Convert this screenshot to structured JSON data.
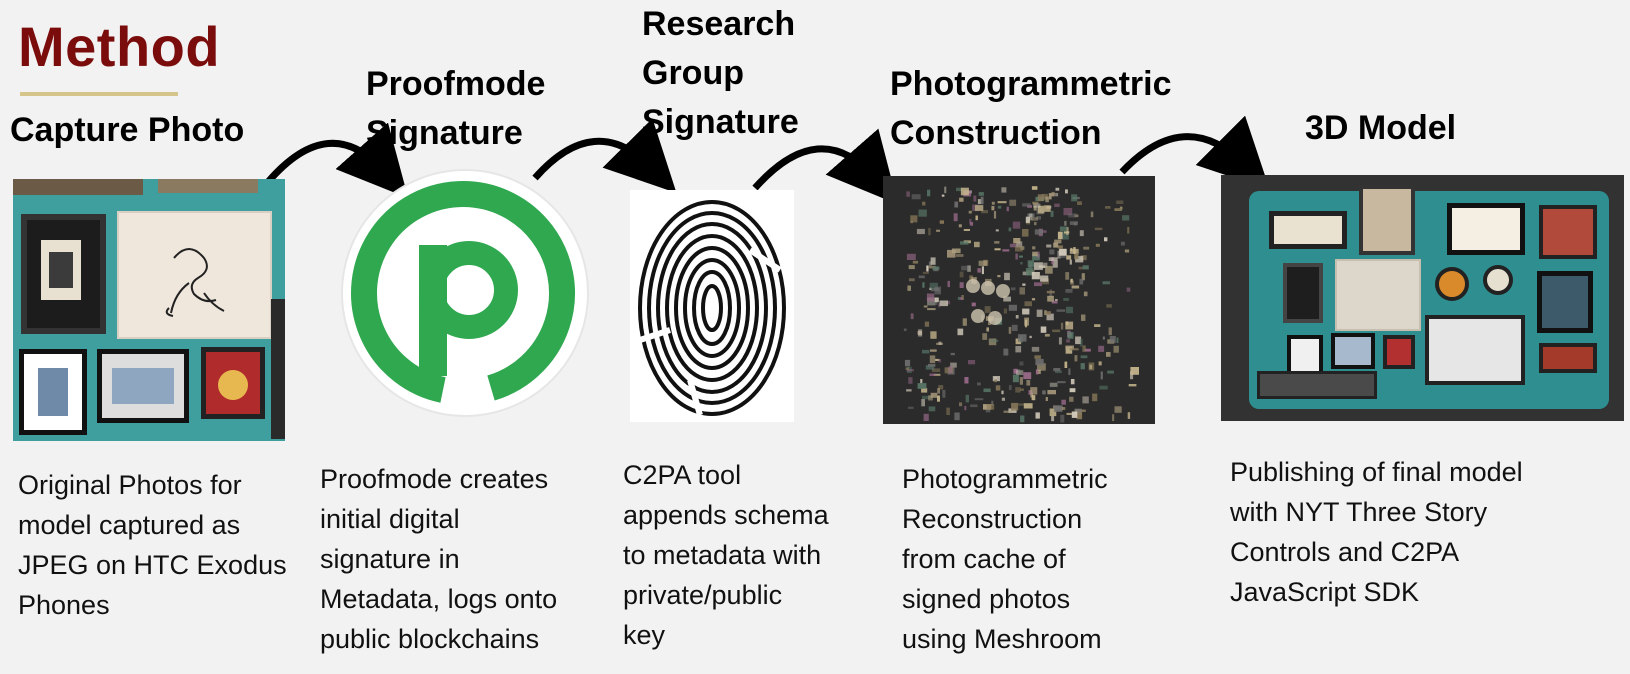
{
  "header": {
    "title": "Method"
  },
  "steps": [
    {
      "title_lines": [
        "Capture Photo"
      ],
      "description_lines": [
        "Original Photos for",
        "model captured as",
        "JPEG on HTC Exodus",
        "Phones"
      ],
      "image": "photo-wall-image"
    },
    {
      "title_lines": [
        "Proofmode",
        "Signature"
      ],
      "description_lines": [
        "Proofmode creates",
        "initial digital",
        "signature in",
        "Metadata, logs onto",
        "public blockchains"
      ],
      "image": "proofmode-logo"
    },
    {
      "title_lines": [
        "Research",
        "Group",
        "Signature"
      ],
      "description_lines": [
        "C2PA tool",
        "appends schema",
        "to metadata with",
        "private/public",
        "key"
      ],
      "image": "fingerprint-icon"
    },
    {
      "title_lines": [
        "Photogrammetric",
        "Construction"
      ],
      "description_lines": [
        "Photogrammetric",
        "Reconstruction",
        "from cache of",
        "signed photos",
        "using Meshroom"
      ],
      "image": "point-cloud-image"
    },
    {
      "title_lines": [
        "3D Model"
      ],
      "description_lines": [
        "Publishing of final model",
        "with NYT Three Story",
        "Controls and C2PA",
        "JavaScript SDK"
      ],
      "image": "3d-model-image"
    }
  ],
  "colors": {
    "title": "#7b0c0c",
    "underline": "#d6c58a",
    "proofmode_green": "#2fa84f",
    "wall_teal": "#3f9e9e",
    "background": "#f2f2f2"
  }
}
